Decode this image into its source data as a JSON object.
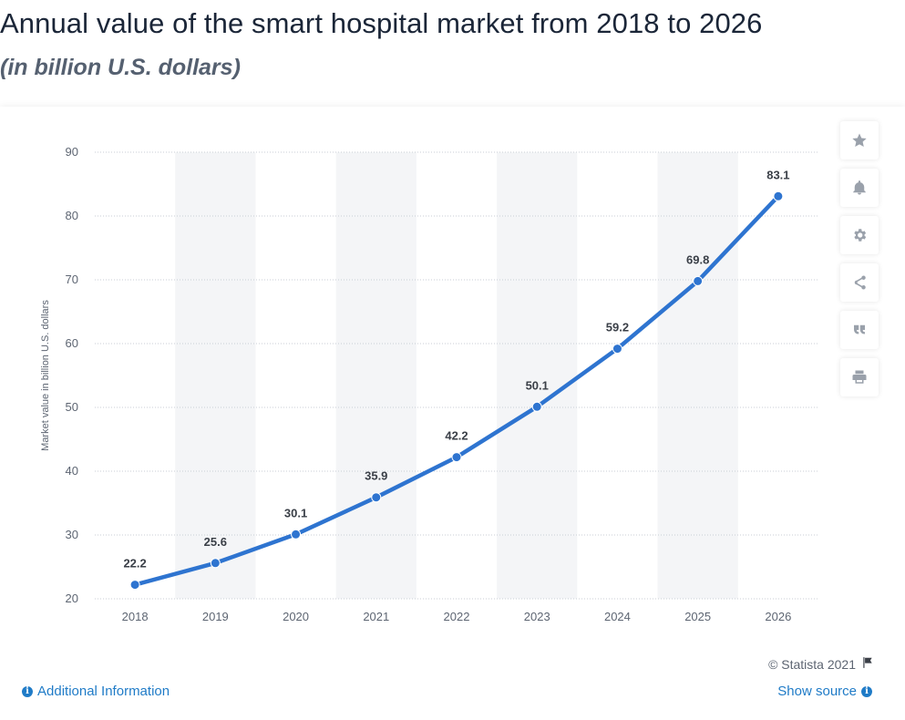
{
  "header": {
    "title": "Annual value of the smart hospital market from 2018 to 2026",
    "subtitle": "(in billion U.S. dollars)"
  },
  "toolbar": {
    "icons": [
      "star-icon",
      "bell-icon",
      "gear-icon",
      "share-icon",
      "quote-icon",
      "print-icon"
    ]
  },
  "footer": {
    "copyright": "© Statista 2021",
    "additional_info": "Additional Information",
    "show_source": "Show source"
  },
  "colors": {
    "line": "#2e74d0",
    "band": "#f4f5f7",
    "grid": "#c9ced6",
    "link": "#1f7bc7"
  },
  "chart_data": {
    "type": "line",
    "categories": [
      "2018",
      "2019",
      "2020",
      "2021",
      "2022",
      "2023",
      "2024",
      "2025",
      "2026"
    ],
    "series": [
      {
        "values": [
          22.2,
          25.6,
          30.1,
          35.9,
          42.2,
          50.1,
          59.2,
          69.8,
          83.1
        ]
      }
    ],
    "ylabel": "Market value in billion U.S. dollars",
    "xlabel": "",
    "ylim": [
      20,
      90
    ],
    "yticks": [
      20,
      30,
      40,
      50,
      60,
      70,
      80,
      90
    ],
    "grid": "horizontal dotted",
    "data_labels": true
  }
}
